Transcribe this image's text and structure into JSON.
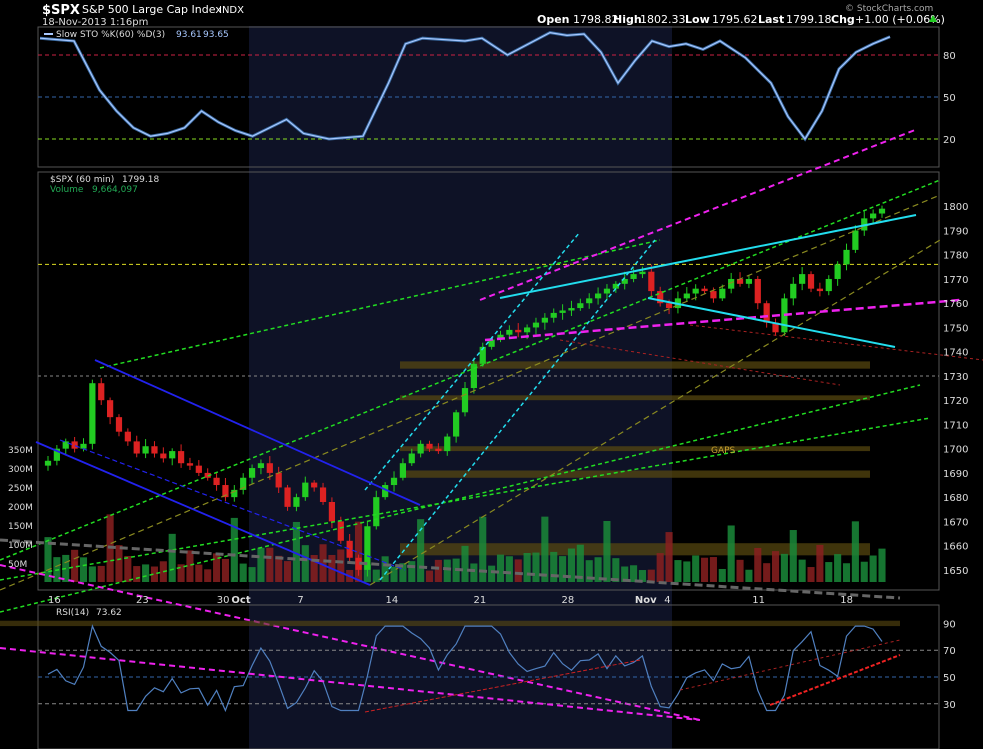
{
  "header": {
    "symbol": "$SPX",
    "name": "S&P 500 Large Cap Index",
    "exchange": "INDX",
    "datetime": "18-Nov-2013 1:16pm",
    "open_label": "Open",
    "open": "1798.82",
    "high_label": "High",
    "high": "1802.33",
    "low_label": "Low",
    "low": "1795.62",
    "last_label": "Last",
    "last": "1799.18",
    "chg_label": "Chg",
    "chg": "+1.00 (+0.06%)",
    "watermark": "© StockCharts.com"
  },
  "colors": {
    "background": "#000000",
    "highlight_panel": "#101428",
    "up_candle": "#22cc22",
    "down_candle": "#dd2222",
    "sto_line": "#a8c8ff",
    "rsi_line": "#5080c0",
    "volume_up": "#1a8a3a",
    "volume_down": "#8a2020",
    "trend_green": "#22dd22",
    "trend_magenta": "#ee22ee",
    "trend_cyan": "#22ddee",
    "trend_blue": "#2222ee",
    "trend_olive": "#8a8a20",
    "gap_zone": "#5a4a10"
  },
  "chart_data": [
    {
      "panel": "slow-stochastic",
      "type": "line",
      "legend": "Slow STO %K(60) %D(3)",
      "legend_values": [
        "93.61",
        "93.65"
      ],
      "ylim": [
        0,
        100
      ],
      "ticks": [
        "80",
        "50",
        "20"
      ],
      "tick_values": [
        80,
        50,
        20
      ],
      "reference_lines": [
        80,
        50,
        20
      ],
      "series": [
        {
          "name": "%K",
          "x": [
            0,
            4,
            7,
            9,
            11,
            13,
            15,
            17,
            19,
            21,
            23,
            25,
            27,
            29,
            31,
            34,
            38,
            41,
            43,
            45,
            50,
            52,
            55,
            60,
            62,
            64,
            66,
            68,
            70,
            72,
            74,
            76,
            78,
            80,
            83,
            86,
            88,
            90,
            92,
            94,
            96,
            98,
            100
          ],
          "values": [
            92,
            90,
            55,
            40,
            28,
            22,
            24,
            28,
            40,
            32,
            26,
            22,
            28,
            34,
            24,
            20,
            22,
            60,
            88,
            92,
            90,
            92,
            80,
            96,
            94,
            95,
            82,
            60,
            76,
            90,
            86,
            88,
            84,
            90,
            78,
            60,
            36,
            20,
            40,
            70,
            82,
            88,
            93
          ]
        }
      ]
    },
    {
      "panel": "price",
      "type": "candlestick",
      "legend": "$SPX (60 min)",
      "legend_value": "1799.18",
      "volume_legend": "Volume",
      "volume_value": "9,664,097",
      "ylim": [
        1645,
        1810
      ],
      "y_ticks": [
        "1800",
        "1790",
        "1780",
        "1770",
        "1760",
        "1750",
        "1740",
        "1730",
        "1720",
        "1710",
        "1700",
        "1690",
        "1680",
        "1670",
        "1660",
        "1650"
      ],
      "y_tick_values": [
        1800,
        1790,
        1780,
        1770,
        1760,
        1750,
        1740,
        1730,
        1720,
        1710,
        1700,
        1690,
        1680,
        1670,
        1660,
        1650
      ],
      "volume_ticks": [
        "350M",
        "300M",
        "250M",
        "200M",
        "150M",
        "100M",
        "50M"
      ],
      "volume_tick_values": [
        350,
        300,
        250,
        200,
        150,
        100,
        50
      ],
      "x_ticks": [
        "16",
        "23",
        "30",
        "Oct",
        "7",
        "14",
        "21",
        "28",
        "Nov",
        "4",
        "11",
        "18"
      ],
      "x_tick_index": [
        0,
        12,
        23,
        25,
        34,
        46,
        58,
        70,
        80,
        84,
        96,
        108
      ],
      "annotation": "GAPS",
      "close_path": [
        1695,
        1700,
        1703,
        1700,
        1702,
        1727,
        1720,
        1713,
        1707,
        1703,
        1698,
        1701,
        1698,
        1696,
        1699,
        1694,
        1693,
        1690,
        1688,
        1685,
        1680,
        1683,
        1688,
        1692,
        1694,
        1690,
        1684,
        1676,
        1680,
        1686,
        1684,
        1678,
        1670,
        1662,
        1655,
        1650,
        1668,
        1680,
        1685,
        1688,
        1694,
        1698,
        1702,
        1700,
        1699,
        1705,
        1715,
        1725,
        1735,
        1742,
        1745,
        1747,
        1749,
        1748,
        1750,
        1752,
        1754,
        1756,
        1757,
        1758,
        1760,
        1762,
        1764,
        1766,
        1768,
        1770,
        1772,
        1773,
        1765,
        1760,
        1758,
        1762,
        1764,
        1766,
        1765,
        1762,
        1766,
        1770,
        1768,
        1770,
        1760,
        1752,
        1748,
        1762,
        1768,
        1772,
        1766,
        1765,
        1770,
        1776,
        1782,
        1790,
        1795,
        1797,
        1799
      ]
    },
    {
      "panel": "rsi",
      "type": "line",
      "legend": "RSI(14)",
      "legend_value": "73.62",
      "ylim": [
        0,
        100
      ],
      "ticks": [
        "90",
        "70",
        "50",
        "30"
      ],
      "tick_values": [
        90,
        70,
        50,
        30
      ],
      "reference_lines": [
        70,
        50,
        30
      ]
    }
  ]
}
